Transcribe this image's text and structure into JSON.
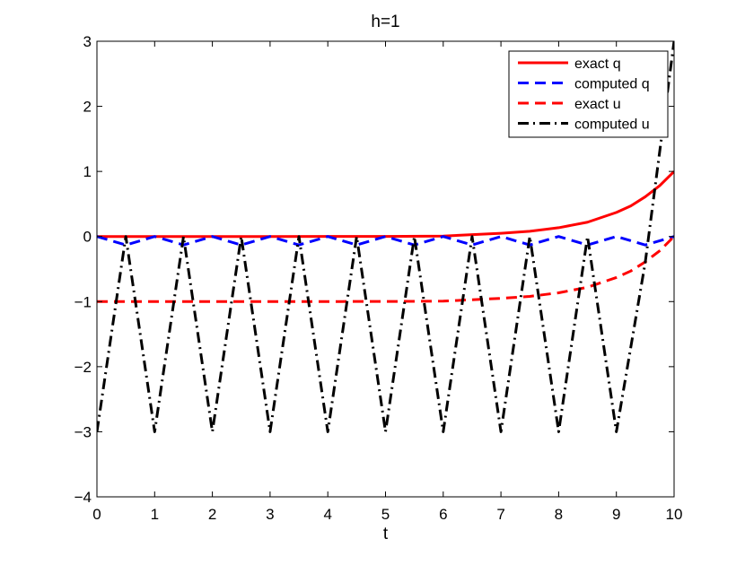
{
  "chart_data": {
    "type": "line",
    "title": "h=1",
    "xlabel": "t",
    "ylabel": "",
    "xlim": [
      0,
      10
    ],
    "ylim": [
      -4,
      3
    ],
    "xticks": [
      0,
      1,
      2,
      3,
      4,
      5,
      6,
      7,
      8,
      9,
      10
    ],
    "yticks": [
      -4,
      -3,
      -2,
      -1,
      0,
      1,
      2,
      3
    ],
    "xtick_labels": [
      "0",
      "1",
      "2",
      "3",
      "4",
      "5",
      "6",
      "7",
      "8",
      "9",
      "10"
    ],
    "ytick_labels": [
      "−4",
      "−3",
      "−2",
      "−1",
      "0",
      "1",
      "2",
      "3"
    ],
    "grid": false,
    "legend_position": "top-right",
    "series": [
      {
        "name": "exact q",
        "color": "#ff0000",
        "style": "solid",
        "x": [
          0,
          1,
          2,
          3,
          4,
          5,
          6,
          7,
          7.5,
          8,
          8.5,
          9,
          9.25,
          9.5,
          9.75,
          10
        ],
        "y": [
          0,
          0,
          0,
          0,
          0.001,
          0.002,
          0.007,
          0.05,
          0.08,
          0.135,
          0.22,
          0.37,
          0.47,
          0.61,
          0.78,
          1.0
        ]
      },
      {
        "name": "computed q",
        "color": "#0000ff",
        "style": "dashed",
        "x": [
          0,
          0.5,
          1,
          1.5,
          2,
          2.5,
          3,
          3.5,
          4,
          4.5,
          5,
          5.5,
          6,
          6.5,
          7,
          7.5,
          8,
          8.5,
          9,
          9.5,
          10
        ],
        "y": [
          0,
          -0.13,
          0,
          -0.13,
          0,
          -0.13,
          0,
          -0.13,
          0,
          -0.13,
          0,
          -0.13,
          0,
          -0.13,
          0,
          -0.13,
          0,
          -0.13,
          0,
          -0.13,
          0
        ]
      },
      {
        "name": "exact u",
        "color": "#ff0000",
        "style": "dashed",
        "x": [
          0,
          1,
          2,
          3,
          4,
          5,
          6,
          7,
          7.5,
          8,
          8.5,
          9,
          9.25,
          9.5,
          9.75,
          10
        ],
        "y": [
          -1,
          -1,
          -1,
          -1,
          -0.999,
          -0.998,
          -0.993,
          -0.95,
          -0.92,
          -0.865,
          -0.78,
          -0.63,
          -0.53,
          -0.39,
          -0.22,
          0
        ]
      },
      {
        "name": "computed u",
        "color": "#000000",
        "style": "dashdot",
        "x": [
          0,
          0.5,
          1,
          1.5,
          2,
          2.5,
          3,
          3.5,
          4,
          4.5,
          5,
          5.5,
          6,
          6.5,
          7,
          7.5,
          8,
          8.5,
          9,
          9.5,
          10
        ],
        "y": [
          -3,
          0,
          -3,
          0,
          -3,
          0,
          -3,
          0,
          -3,
          0,
          -3,
          0,
          -3,
          0,
          -3,
          0,
          -3,
          0,
          -3,
          -0.4,
          3
        ]
      }
    ]
  }
}
